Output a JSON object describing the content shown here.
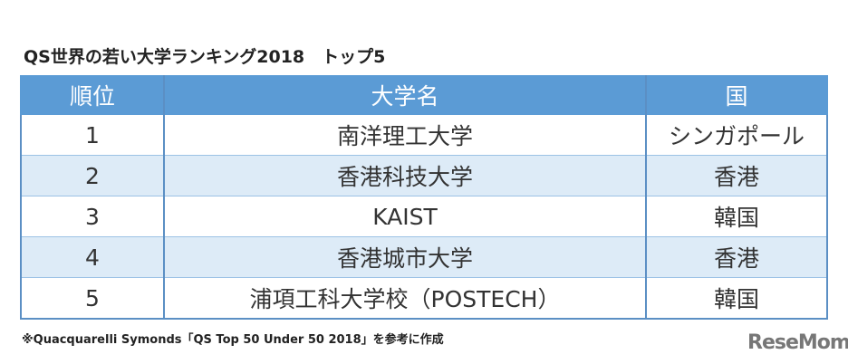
{
  "title": "QS世界の若い大学ランキング2018　トップ5",
  "headers": [
    "順位",
    "大学名",
    "国"
  ],
  "rows": [
    [
      "1",
      "南洋理工大学",
      "シンガポール"
    ],
    [
      "2",
      "香港科技大学",
      "香港"
    ],
    [
      "3",
      "KAIST",
      "韓国"
    ],
    [
      "4",
      "香港城市大学",
      "香港"
    ],
    [
      "5",
      "浦項工科大学校（POSTECH）",
      "韓国"
    ]
  ],
  "footnote": "※Quacquarelli Symonds「QS Top 50 Under 50 2018」を参考に作成",
  "logo": "ReseMom",
  "colors": {
    "header": "#5b9bd5",
    "alt_row": "#ddebf7",
    "border": "#5b8fc4"
  }
}
